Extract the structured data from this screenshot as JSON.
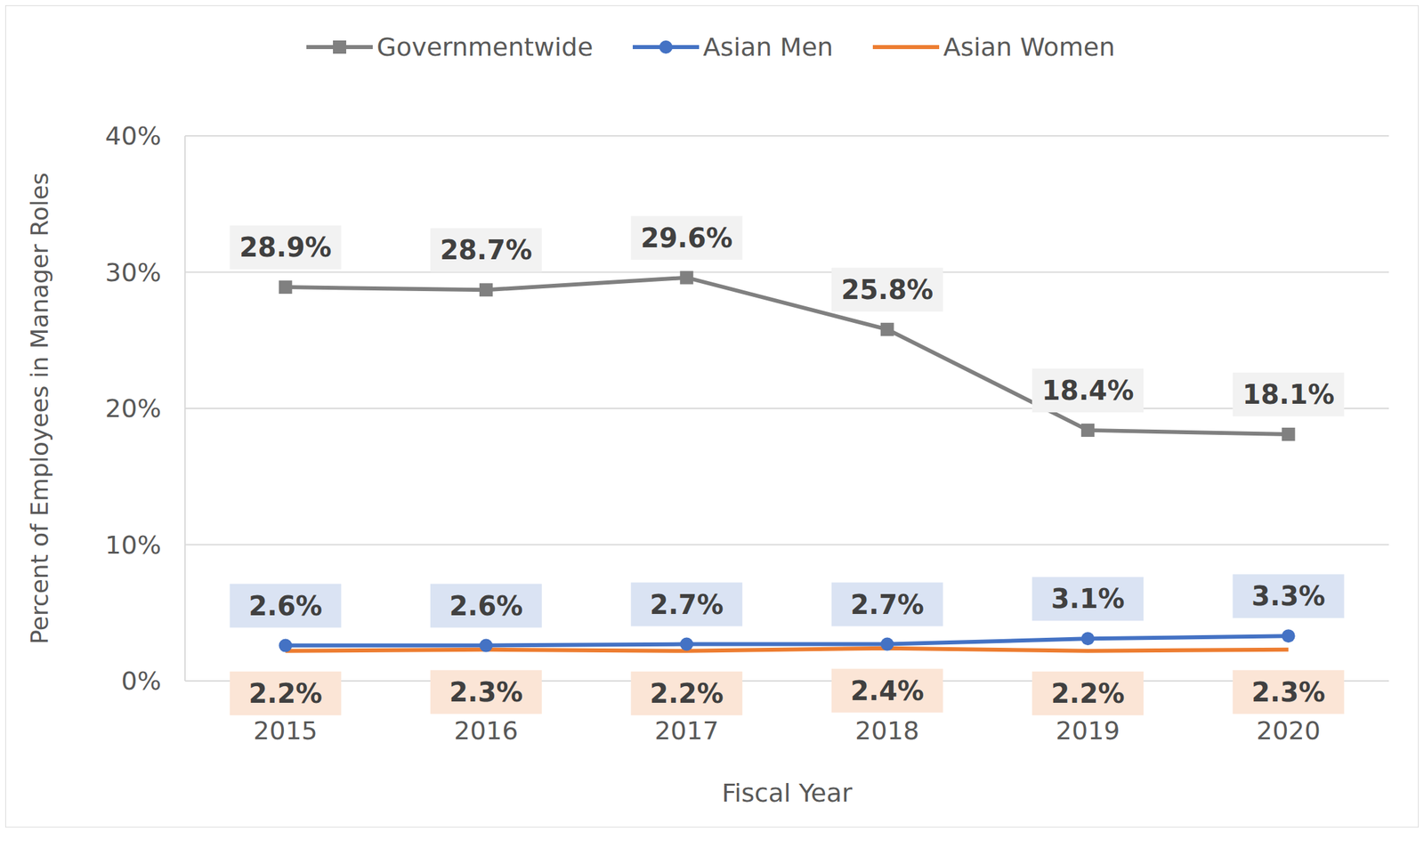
{
  "chart_data": {
    "type": "line",
    "x_label": "Fiscal Year",
    "y_label": "Percent of Employees in Manager Roles",
    "categories": [
      "2015",
      "2016",
      "2017",
      "2018",
      "2019",
      "2020"
    ],
    "series": [
      {
        "name": "Governmentwide",
        "color": "#808080",
        "marker": "square",
        "values": [
          28.9,
          28.7,
          29.6,
          25.8,
          18.4,
          18.1
        ],
        "value_labels": [
          "28.9%",
          "28.7%",
          "29.6%",
          "25.8%",
          "18.4%",
          "18.1%"
        ]
      },
      {
        "name": "Asian Men",
        "color": "#4472c4",
        "marker": "circle",
        "values": [
          2.6,
          2.6,
          2.7,
          2.7,
          3.1,
          3.3
        ],
        "value_labels": [
          "2.6%",
          "2.6%",
          "2.7%",
          "2.7%",
          "3.1%",
          "3.3%"
        ]
      },
      {
        "name": "Asian Women",
        "color": "#ed7d31",
        "marker": "none",
        "values": [
          2.2,
          2.3,
          2.2,
          2.4,
          2.2,
          2.3
        ],
        "value_labels": [
          "2.2%",
          "2.3%",
          "2.2%",
          "2.4%",
          "2.2%",
          "2.3%"
        ]
      }
    ],
    "ylim": [
      0,
      40
    ],
    "yticks": [
      {
        "value": 0,
        "label": "0%"
      },
      {
        "value": 10,
        "label": "10%"
      },
      {
        "value": 20,
        "label": "20%"
      },
      {
        "value": 30,
        "label": "30%"
      },
      {
        "value": 40,
        "label": "40%"
      }
    ],
    "grid": true,
    "legend": "top",
    "data_labels": true
  }
}
